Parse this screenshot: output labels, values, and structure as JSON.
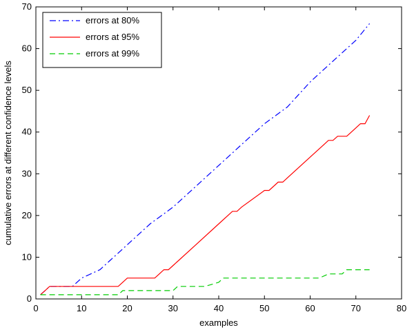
{
  "chart_data": {
    "type": "line",
    "xlabel": "examples",
    "ylabel": "cumulative errors at different confidence levels",
    "xlim": [
      0,
      80
    ],
    "ylim": [
      0,
      70
    ],
    "xticks": [
      "0",
      "10",
      "20",
      "30",
      "40",
      "50",
      "60",
      "70",
      "80"
    ],
    "yticks": [
      "0",
      "10",
      "20",
      "30",
      "40",
      "50",
      "60",
      "70"
    ],
    "grid": false,
    "legend_position": "top-left",
    "series": [
      {
        "name": "errors at 80%",
        "color": "#0000ff",
        "style": "dashdot",
        "x": [
          1,
          2,
          3,
          7,
          8,
          10,
          12,
          14,
          16,
          18,
          20,
          25,
          30,
          35,
          40,
          45,
          50,
          55,
          60,
          65,
          70,
          73
        ],
        "y": [
          1,
          2,
          3,
          3,
          3,
          5,
          6,
          7,
          9,
          11,
          13,
          18,
          22,
          27,
          32,
          37,
          42,
          46,
          52,
          57,
          62,
          66
        ]
      },
      {
        "name": "errors at 95%",
        "color": "#ff0000",
        "style": "solid",
        "x": [
          1,
          2,
          3,
          18,
          19,
          20,
          26,
          27,
          28,
          29,
          30,
          31,
          35,
          40,
          43,
          44,
          45,
          50,
          51,
          52,
          53,
          54,
          55,
          60,
          63,
          64,
          65,
          66,
          67,
          68,
          70,
          71,
          72,
          73
        ],
        "y": [
          1,
          2,
          3,
          3,
          4,
          5,
          5,
          6,
          7,
          7,
          8,
          9,
          13,
          18,
          21,
          21,
          22,
          26,
          26,
          27,
          28,
          28,
          29,
          34,
          37,
          38,
          38,
          39,
          39,
          39,
          41,
          42,
          42,
          44
        ],
        "step": true
      },
      {
        "name": "errors at 99%",
        "color": "#00cc00",
        "style": "dashed",
        "x": [
          1,
          2,
          18,
          19,
          20,
          30,
          31,
          32,
          37,
          40,
          41,
          62,
          64,
          65,
          67,
          68,
          69,
          73
        ],
        "y": [
          1,
          1,
          1,
          2,
          2,
          2,
          3,
          3,
          3,
          4,
          5,
          5,
          6,
          6,
          6,
          7,
          7,
          7
        ],
        "step": true
      }
    ]
  }
}
